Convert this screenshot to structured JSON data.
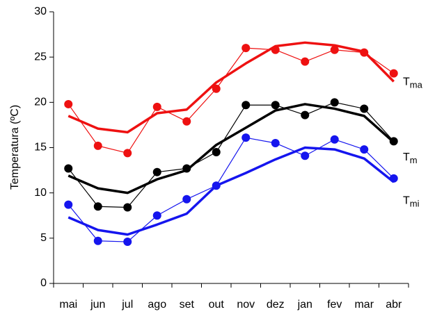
{
  "chart_data": {
    "type": "line",
    "y_label": "Temperatura (ºC)",
    "categories": [
      "mai",
      "jun",
      "jul",
      "ago",
      "set",
      "out",
      "nov",
      "dez",
      "jan",
      "fev",
      "mar",
      "abr"
    ],
    "ylim": [
      0,
      30
    ],
    "yticks": [
      0,
      5,
      10,
      15,
      20,
      25,
      30
    ],
    "grid": false,
    "series": [
      {
        "color": "#ee1111",
        "marker": true,
        "values": [
          19.8,
          15.2,
          14.4,
          19.5,
          17.9,
          21.5,
          26.0,
          25.8,
          24.5,
          25.8,
          25.5,
          23.2
        ]
      },
      {
        "color": "#ee1111",
        "marker": false,
        "values": [
          18.5,
          17.1,
          16.7,
          18.8,
          19.2,
          22.2,
          24.3,
          26.2,
          26.6,
          26.3,
          25.6,
          22.3
        ]
      },
      {
        "color": "#000000",
        "marker": true,
        "values": [
          12.7,
          8.5,
          8.4,
          12.3,
          12.7,
          14.5,
          19.7,
          19.7,
          18.6,
          20.0,
          19.3,
          15.7
        ]
      },
      {
        "color": "#000000",
        "marker": false,
        "values": [
          11.9,
          10.5,
          10.0,
          11.5,
          12.5,
          15.3,
          17.2,
          19.1,
          19.8,
          19.3,
          18.5,
          15.6
        ]
      },
      {
        "color": "#1515ee",
        "marker": true,
        "values": [
          8.7,
          4.7,
          4.6,
          7.5,
          9.3,
          10.8,
          16.1,
          15.5,
          14.1,
          15.9,
          14.8,
          11.6
        ]
      },
      {
        "color": "#1515ee",
        "marker": false,
        "values": [
          7.3,
          5.9,
          5.4,
          6.5,
          7.7,
          10.8,
          12.2,
          13.7,
          15.0,
          14.8,
          13.8,
          11.2
        ]
      }
    ],
    "annotations": [
      {
        "text": "T",
        "sub": "ma",
        "y": 22.2
      },
      {
        "text": "T",
        "sub": "m",
        "y": 13.9
      },
      {
        "text": "T",
        "sub": "mi",
        "y": 9.1
      }
    ]
  }
}
